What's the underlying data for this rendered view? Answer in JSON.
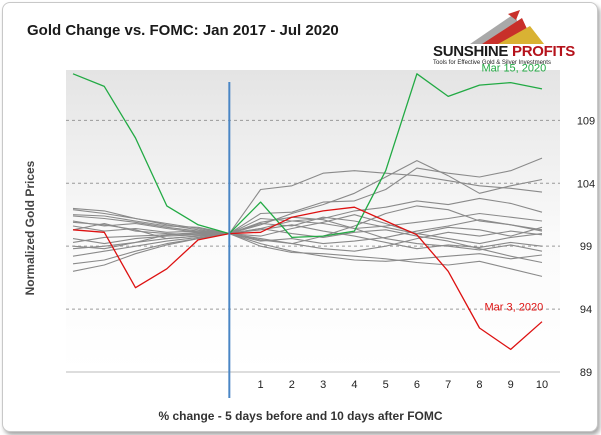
{
  "brand": {
    "name_a": "SUNSHINE",
    "name_b": "PROFITS",
    "tagline": "Tools for Effective Gold & Silver Investments"
  },
  "chart_data": {
    "type": "line",
    "title": "Gold Change vs. FOMC: Jan 2017 - Jul 2020",
    "xlabel": "% change - 5 days before and 10 days after FOMC",
    "ylabel": "Normalized Gold Prices",
    "x": [
      -5,
      -4,
      -3,
      -2,
      -1,
      0,
      1,
      2,
      3,
      4,
      5,
      6,
      7,
      8,
      9,
      10
    ],
    "x_tick_labels": [
      "1",
      "2",
      "3",
      "4",
      "5",
      "6",
      "7",
      "8",
      "9",
      "10"
    ],
    "ylim": [
      89,
      113
    ],
    "y_ticks": [
      89,
      94,
      99,
      104,
      109
    ],
    "y_axis_side": "right",
    "grid": "horizontal dashed",
    "event_line_x": 0,
    "colors": {
      "gray": "#8a8a8a",
      "mar15": "#22aa44",
      "mar3": "#dd1111",
      "event": "#4a86c5",
      "plot_bg_top": "#e6e6e6"
    },
    "series": [
      {
        "name": "Mar 15, 2020",
        "color": "green",
        "values": [
          112.7,
          111.7,
          107.6,
          102.2,
          100.7,
          100.0,
          102.5,
          99.7,
          99.8,
          100.2,
          105.0,
          112.7,
          110.9,
          111.8,
          112.0,
          111.5
        ]
      },
      {
        "name": "Mar 3, 2020",
        "color": "red",
        "values": [
          100.3,
          100.1,
          95.7,
          97.2,
          99.5,
          100.0,
          100.1,
          101.3,
          101.8,
          102.1,
          101.0,
          99.9,
          97.0,
          92.5,
          90.8,
          93.0
        ]
      },
      {
        "color": "gray",
        "values": [
          101.5,
          101.4,
          101.0,
          100.6,
          100.5,
          100.0,
          103.5,
          103.8,
          104.8,
          105.0,
          104.8,
          104.6,
          104.2,
          103.8,
          103.6,
          103.3
        ]
      },
      {
        "color": "gray",
        "values": [
          98.8,
          99.0,
          99.3,
          99.6,
          99.8,
          100.0,
          101.6,
          101.7,
          102.5,
          102.6,
          103.5,
          105.2,
          104.8,
          104.5,
          105.0,
          106.0
        ]
      },
      {
        "color": "gray",
        "values": [
          101.9,
          101.6,
          101.2,
          100.8,
          100.4,
          100.0,
          100.7,
          101.6,
          102.3,
          103.2,
          104.5,
          105.8,
          104.6,
          103.2,
          103.8,
          104.3
        ]
      },
      {
        "color": "gray",
        "values": [
          98.2,
          98.6,
          99.0,
          99.4,
          99.7,
          100.0,
          100.4,
          101.0,
          101.2,
          101.8,
          102.1,
          102.6,
          102.3,
          102.8,
          102.4,
          101.7
        ]
      },
      {
        "color": "gray",
        "values": [
          97.6,
          97.9,
          98.6,
          99.2,
          99.6,
          100.0,
          99.6,
          99.2,
          99.8,
          100.6,
          101.6,
          102.2,
          101.9,
          101.0,
          100.7,
          100.3
        ]
      },
      {
        "color": "gray",
        "values": [
          101.4,
          101.2,
          100.9,
          100.5,
          100.2,
          100.0,
          99.5,
          99.2,
          98.8,
          98.6,
          99.0,
          99.6,
          100.1,
          99.8,
          100.2,
          99.9
        ]
      },
      {
        "color": "gray",
        "values": [
          101.0,
          100.6,
          100.8,
          100.4,
          100.1,
          100.0,
          99.2,
          98.6,
          98.2,
          97.9,
          97.8,
          98.0,
          98.2,
          98.4,
          98.0,
          98.3
        ]
      },
      {
        "color": "gray",
        "values": [
          100.3,
          100.8,
          100.2,
          100.0,
          99.9,
          100.0,
          99.0,
          98.5,
          98.4,
          98.2,
          98.0,
          97.7,
          97.5,
          97.8,
          97.2,
          96.6
        ]
      },
      {
        "color": "gray",
        "values": [
          99.3,
          99.7,
          99.8,
          99.9,
          100.0,
          100.0,
          100.8,
          100.6,
          101.3,
          101.0,
          100.5,
          100.0,
          99.6,
          99.2,
          99.7,
          100.0
        ]
      },
      {
        "color": "gray",
        "values": [
          100.6,
          100.2,
          100.4,
          100.1,
          100.2,
          100.0,
          101.2,
          101.0,
          100.8,
          100.4,
          100.6,
          100.9,
          101.2,
          101.6,
          101.3,
          101.0
        ]
      },
      {
        "color": "gray",
        "values": [
          99.6,
          99.2,
          99.6,
          99.8,
          99.9,
          100.0,
          100.3,
          100.7,
          100.2,
          99.8,
          99.3,
          98.8,
          99.1,
          98.9,
          99.3,
          99.0
        ]
      },
      {
        "color": "gray",
        "values": [
          100.9,
          100.7,
          100.3,
          99.6,
          99.8,
          100.0,
          99.8,
          100.4,
          100.9,
          101.5,
          100.8,
          100.0,
          100.5,
          100.3,
          99.8,
          100.5
        ]
      },
      {
        "color": "gray",
        "values": [
          99.0,
          98.8,
          99.3,
          99.9,
          100.1,
          100.0,
          99.4,
          99.6,
          99.2,
          99.4,
          99.7,
          100.2,
          100.6,
          101.1,
          100.7,
          100.2
        ]
      },
      {
        "color": "gray",
        "values": [
          97.0,
          97.5,
          98.4,
          99.1,
          99.6,
          100.0,
          100.4,
          100.0,
          99.7,
          100.1,
          100.3,
          99.8,
          99.4,
          98.8,
          98.2,
          97.7
        ]
      },
      {
        "color": "gray",
        "values": [
          102.0,
          101.8,
          101.2,
          100.7,
          100.3,
          100.0,
          100.9,
          101.3,
          101.1,
          100.4,
          99.6,
          99.2,
          99.0,
          98.7,
          99.1,
          98.6
        ]
      }
    ]
  }
}
